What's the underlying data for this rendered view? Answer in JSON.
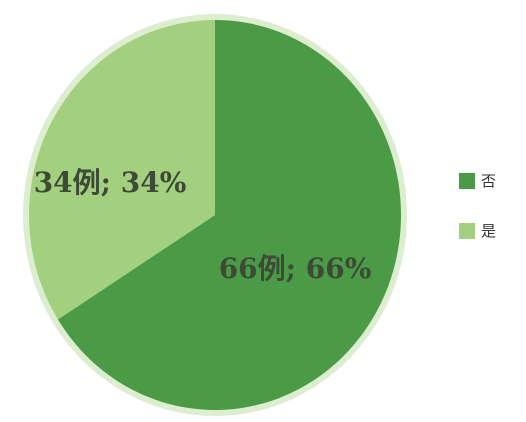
{
  "chart_data": {
    "type": "pie",
    "title": "",
    "legend_position": "right",
    "slices": [
      {
        "name": "否",
        "count": 66,
        "percent": 66,
        "label": "66例; 66%",
        "color": "#4a9a46"
      },
      {
        "name": "是",
        "count": 34,
        "percent": 34,
        "label": "34例; 34%",
        "color": "#a3d07e"
      }
    ]
  },
  "colors": {
    "outer_ring": "#dcedd0"
  },
  "legend": {
    "items": [
      {
        "label": "否",
        "color": "#4a9a46"
      },
      {
        "label": "是",
        "color": "#a3d07e"
      }
    ]
  }
}
